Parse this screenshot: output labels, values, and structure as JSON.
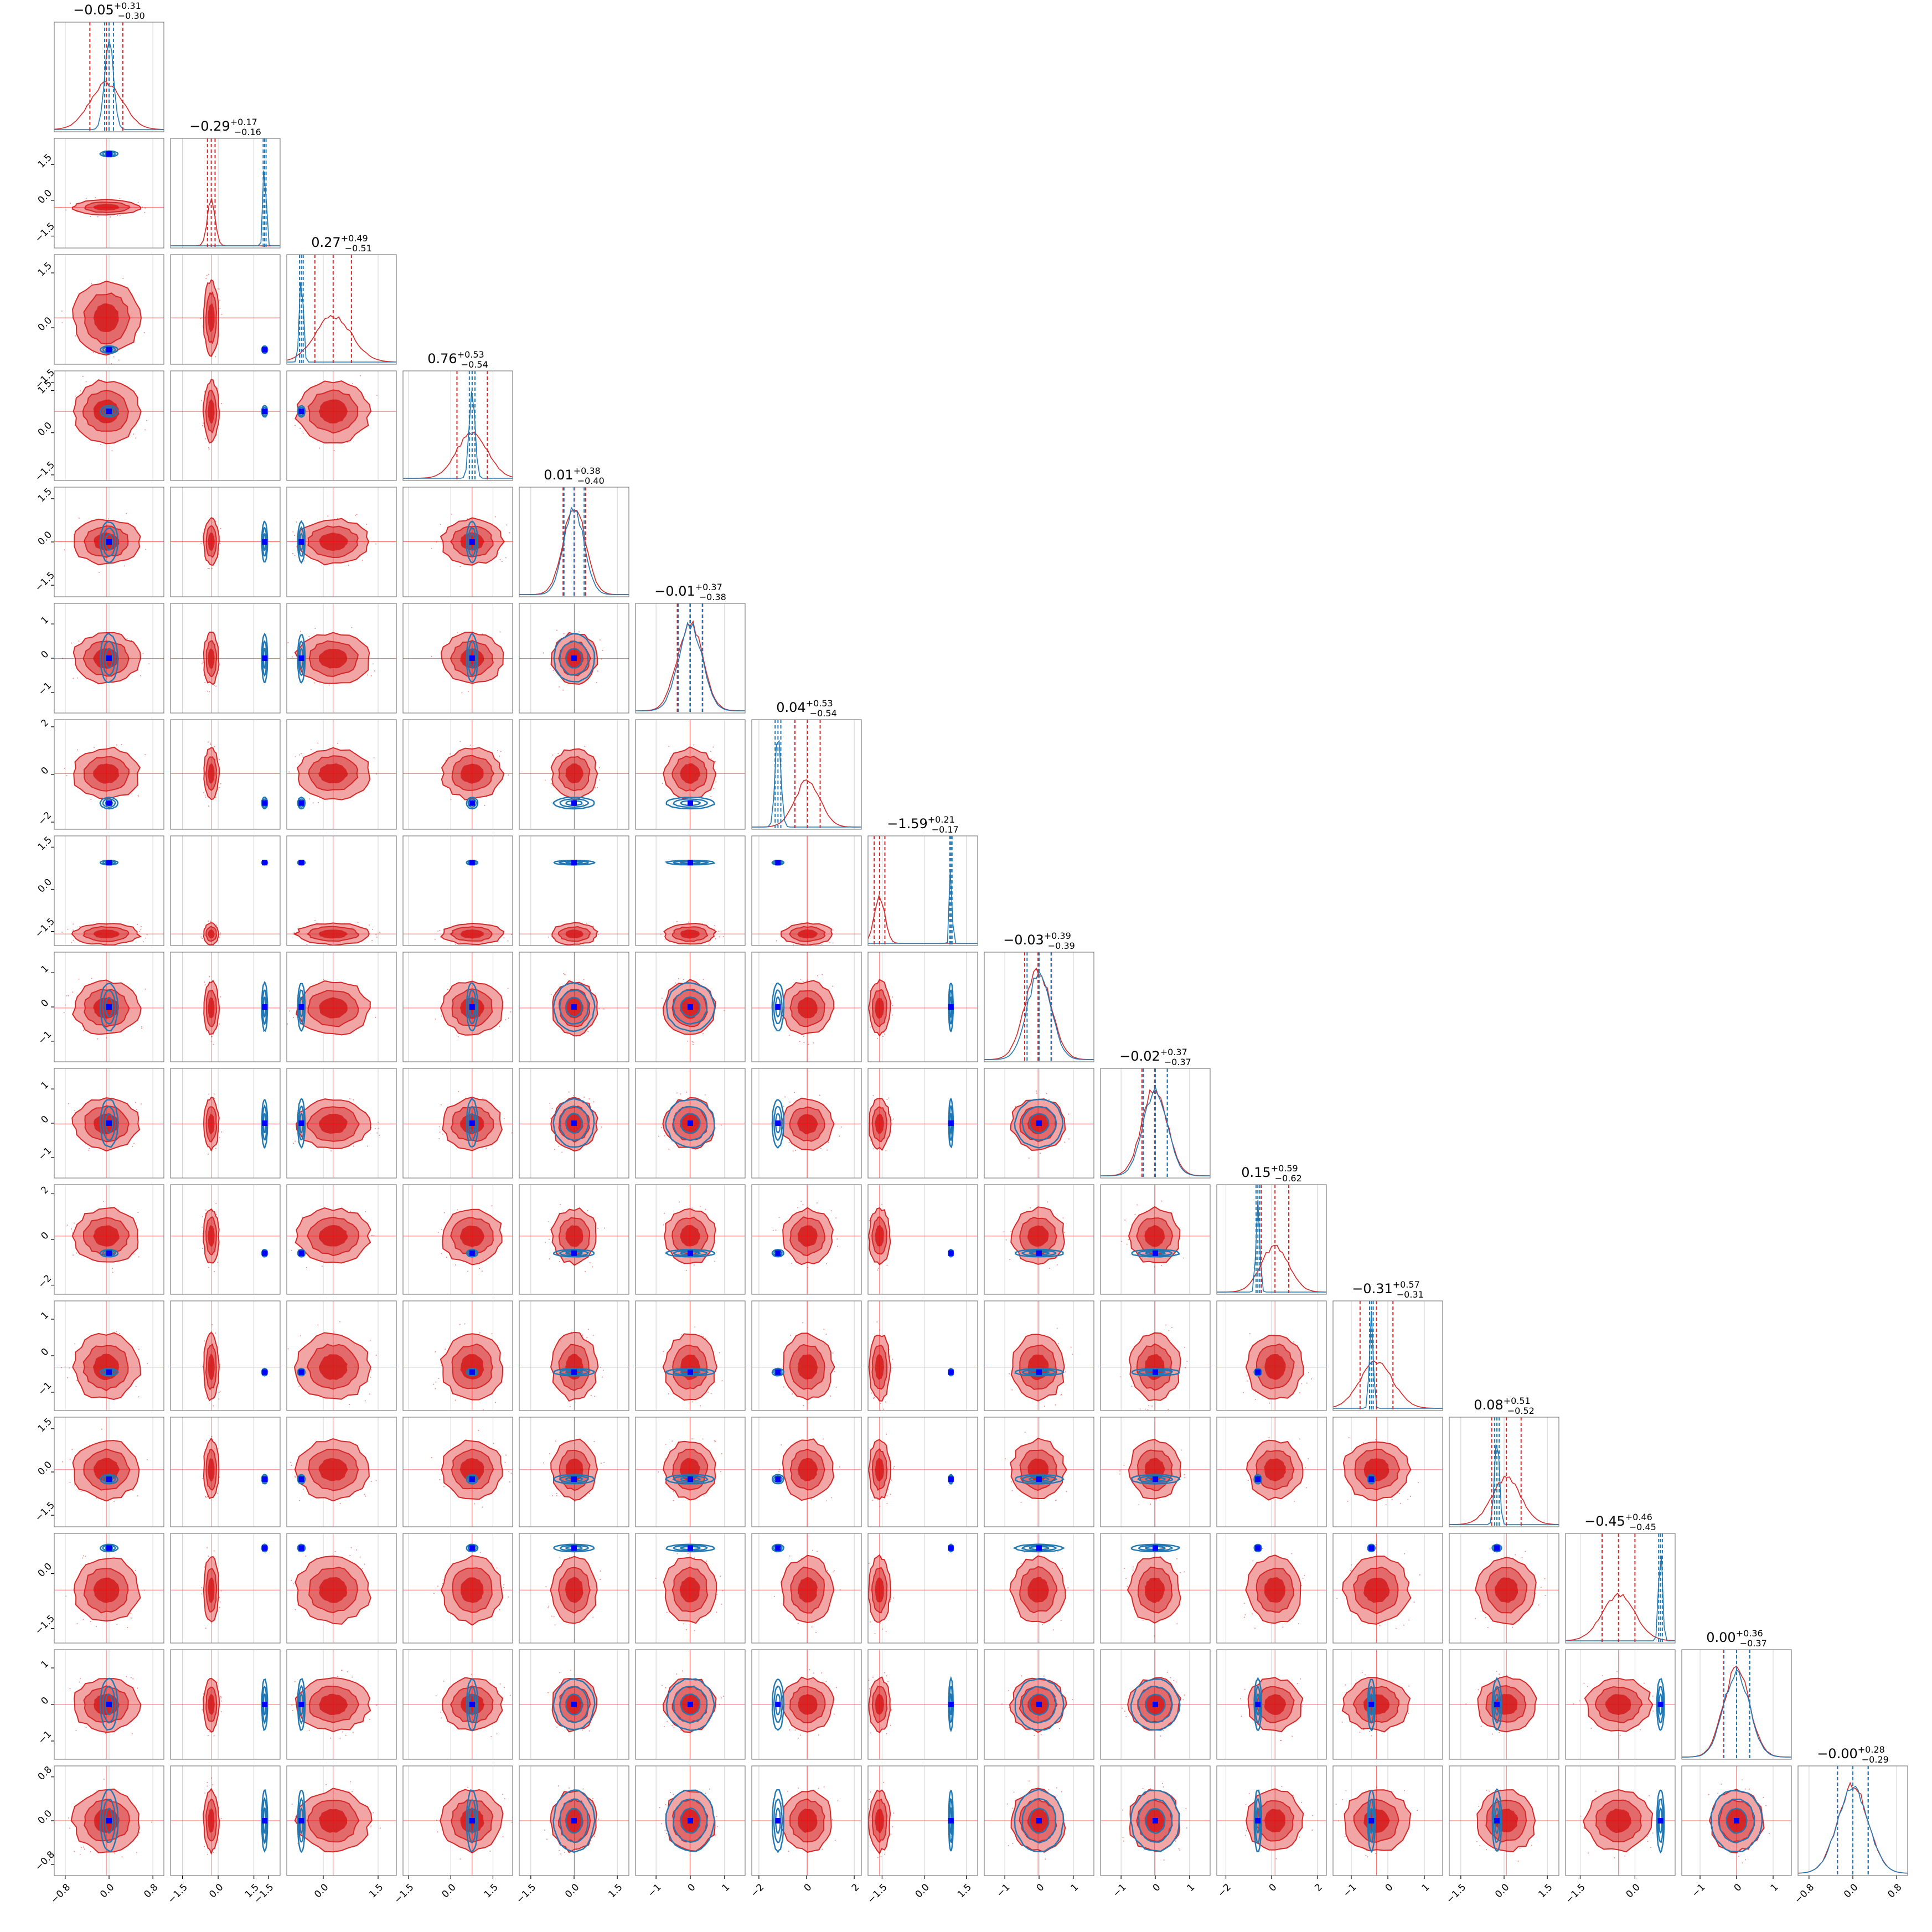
{
  "chart_data": {
    "type": "corner",
    "dimensions": 16,
    "panel_titles": [
      {
        "median": "−0.05",
        "plus": "+0.31",
        "minus": "−0.30"
      },
      {
        "median": "−0.29",
        "plus": "+0.17",
        "minus": "−0.16"
      },
      {
        "median": "0.27",
        "plus": "+0.49",
        "minus": "−0.51"
      },
      {
        "median": "0.76",
        "plus": "+0.53",
        "minus": "−0.54"
      },
      {
        "median": "0.01",
        "plus": "+0.38",
        "minus": "−0.40"
      },
      {
        "median": "−0.01",
        "plus": "+0.37",
        "minus": "−0.38"
      },
      {
        "median": "0.04",
        "plus": "+0.53",
        "minus": "−0.54"
      },
      {
        "median": "−1.59",
        "plus": "+0.21",
        "minus": "−0.17"
      },
      {
        "median": "−0.03",
        "plus": "+0.39",
        "minus": "−0.39"
      },
      {
        "median": "−0.02",
        "plus": "+0.37",
        "minus": "−0.37"
      },
      {
        "median": "0.15",
        "plus": "+0.59",
        "minus": "−0.62"
      },
      {
        "median": "−0.31",
        "plus": "+0.57",
        "minus": "−0.31"
      },
      {
        "median": "0.08",
        "plus": "+0.51",
        "minus": "−0.52"
      },
      {
        "median": "−0.45",
        "plus": "+0.46",
        "minus": "−0.45"
      },
      {
        "median": "0.00",
        "plus": "+0.36",
        "minus": "−0.37"
      },
      {
        "median": "−0.00",
        "plus": "+0.28",
        "minus": "−0.29"
      }
    ],
    "axes": [
      {
        "range": [
          -1.0,
          1.0
        ],
        "ticks": [
          "−0.8",
          "0.0",
          "0.8"
        ],
        "tick_values": [
          -0.8,
          0.0,
          0.8
        ]
      },
      {
        "range": [
          -2.0,
          2.6
        ],
        "ticks": [
          "−1.5",
          "0.0",
          "1.5"
        ],
        "tick_values": [
          -1.5,
          0.0,
          1.5
        ]
      },
      {
        "range": [
          -1.0,
          2.0
        ],
        "ticks": [
          "−1.5",
          "0.0",
          "1.5"
        ],
        "tick_values": [
          -1.5,
          0.0,
          1.5
        ]
      },
      {
        "range": [
          -1.7,
          2.2
        ],
        "ticks": [
          "−1.5",
          "0.0",
          "1.5"
        ],
        "tick_values": [
          -1.5,
          0.0,
          1.5
        ]
      },
      {
        "range": [
          -1.9,
          1.9
        ],
        "ticks": [
          "−1.5",
          "0.0",
          "1.5"
        ],
        "tick_values": [
          -1.5,
          0.0,
          1.5
        ]
      },
      {
        "range": [
          -1.6,
          1.6
        ],
        "ticks": [
          "−1",
          "0",
          "1"
        ],
        "tick_values": [
          -1,
          0,
          1
        ]
      },
      {
        "range": [
          -2.3,
          2.3
        ],
        "ticks": [
          "−2",
          "0",
          "2"
        ],
        "tick_values": [
          -2,
          0,
          2
        ]
      },
      {
        "range": [
          -2.0,
          1.9
        ],
        "ticks": [
          "−1.5",
          "0.0",
          "1.5"
        ],
        "tick_values": [
          -1.5,
          0.0,
          1.5
        ]
      },
      {
        "range": [
          -1.6,
          1.6
        ],
        "ticks": [
          "−1",
          "0",
          "1"
        ],
        "tick_values": [
          -1,
          0,
          1
        ]
      },
      {
        "range": [
          -1.6,
          1.6
        ],
        "ticks": [
          "−1",
          "0",
          "1"
        ],
        "tick_values": [
          -1,
          0,
          1
        ]
      },
      {
        "range": [
          -2.4,
          2.4
        ],
        "ticks": [
          "−2",
          "0",
          "2"
        ],
        "tick_values": [
          -2,
          0,
          2
        ]
      },
      {
        "range": [
          -1.5,
          1.5
        ],
        "ticks": [
          "−1",
          "0",
          "1"
        ],
        "tick_values": [
          -1,
          0,
          1
        ]
      },
      {
        "range": [
          -1.9,
          1.9
        ],
        "ticks": [
          "−1.5",
          "0.0",
          "1.5"
        ],
        "tick_values": [
          -1.5,
          0.0,
          1.5
        ]
      },
      {
        "range": [
          -1.9,
          1.1
        ],
        "ticks": [
          "−1.5",
          "0.0"
        ],
        "tick_values": [
          -1.5,
          0.0
        ]
      },
      {
        "range": [
          -1.5,
          1.5
        ],
        "ticks": [
          "−1",
          "0",
          "1"
        ],
        "tick_values": [
          -1,
          0,
          1
        ]
      },
      {
        "range": [
          -1.0,
          1.0
        ],
        "ticks": [
          "−0.8",
          "0.0",
          "0.8"
        ],
        "tick_values": [
          -0.8,
          0.0,
          0.8
        ]
      }
    ],
    "series": [
      {
        "color": "#d62728",
        "center": [
          -0.05,
          -0.29,
          0.27,
          0.76,
          0.01,
          -0.01,
          0.04,
          -1.59,
          -0.03,
          -0.02,
          0.15,
          -0.31,
          0.08,
          -0.45,
          0.0,
          0.0
        ],
        "sigma": [
          0.3,
          0.16,
          0.5,
          0.54,
          0.39,
          0.37,
          0.53,
          0.19,
          0.39,
          0.37,
          0.6,
          0.45,
          0.51,
          0.45,
          0.36,
          0.28
        ]
      },
      {
        "color": "#1f77b4",
        "center": [
          0.0,
          1.95,
          -0.6,
          0.76,
          0.0,
          0.0,
          -1.2,
          0.95,
          0.0,
          0.0,
          -0.6,
          -0.45,
          -0.25,
          0.7,
          0.0,
          0.0
        ],
        "sigma": [
          0.08,
          0.06,
          0.05,
          0.1,
          0.35,
          0.35,
          0.12,
          0.04,
          0.35,
          0.35,
          0.08,
          0.05,
          0.08,
          0.05,
          0.35,
          0.28
        ]
      }
    ],
    "truth_color": "#0000ff",
    "quantile_line_color": "#d62728",
    "grid": true,
    "legend": "none"
  }
}
